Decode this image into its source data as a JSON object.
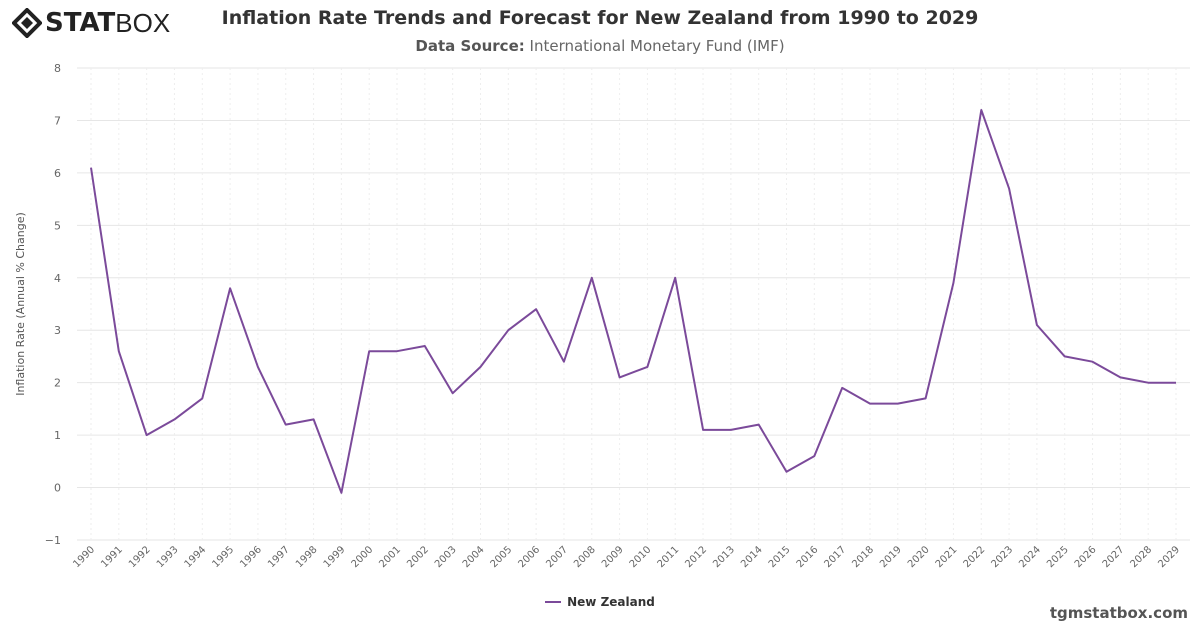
{
  "header": {
    "logo": "STATBOX",
    "logo_bold": "STAT",
    "logo_light": "BOX",
    "title": "Inflation Rate Trends and Forecast for New Zealand from 1990 to 2029",
    "subtitle_label": "Data Source:",
    "subtitle_value": "International Monetary Fund (IMF)"
  },
  "footer": {
    "site": "tgmstatbox.com"
  },
  "chart_data": {
    "type": "line",
    "title": "Inflation Rate Trends and Forecast for New Zealand from 1990 to 2029",
    "ylabel": "Inflation Rate (Annual % Change)",
    "xlabel": "",
    "ylim": [
      -1,
      8
    ],
    "yticks": [
      -1,
      0,
      1,
      2,
      3,
      4,
      5,
      6,
      7,
      8
    ],
    "grid": true,
    "legend": "bottom-center",
    "x": [
      "1990",
      "1991",
      "1992",
      "1993",
      "1994",
      "1995",
      "1996",
      "1997",
      "1998",
      "1999",
      "2000",
      "2001",
      "2002",
      "2003",
      "2004",
      "2005",
      "2006",
      "2007",
      "2008",
      "2009",
      "2010",
      "2011",
      "2012",
      "2013",
      "2014",
      "2015",
      "2016",
      "2017",
      "2018",
      "2019",
      "2020",
      "2021",
      "2022",
      "2023",
      "2024",
      "2025",
      "2026",
      "2027",
      "2028",
      "2029"
    ],
    "series": [
      {
        "name": "New Zealand",
        "color": "#7b4a9a",
        "values": [
          6.1,
          2.6,
          1.0,
          1.3,
          1.7,
          3.8,
          2.3,
          1.2,
          1.3,
          -0.1,
          2.6,
          2.6,
          2.7,
          1.8,
          2.3,
          3.0,
          3.4,
          2.4,
          4.0,
          2.1,
          2.3,
          4.0,
          1.1,
          1.1,
          1.2,
          0.3,
          0.6,
          1.9,
          1.6,
          1.6,
          1.7,
          3.9,
          7.2,
          5.7,
          3.1,
          2.5,
          2.4,
          2.1,
          2.0,
          2.0
        ]
      }
    ]
  }
}
